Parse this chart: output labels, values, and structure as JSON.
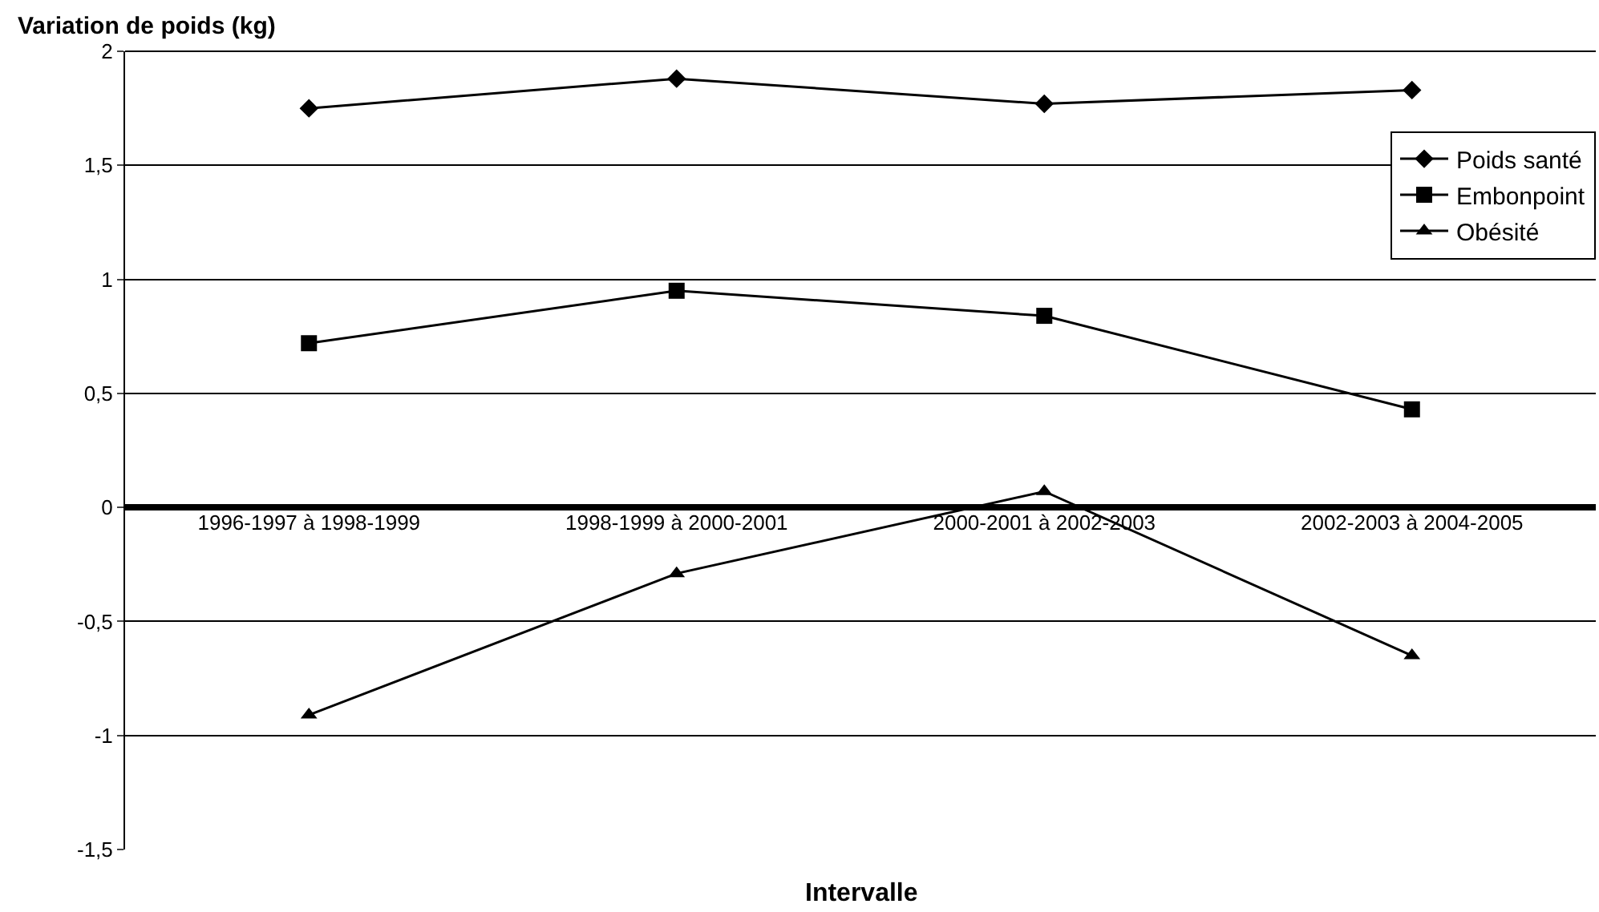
{
  "chart_data": {
    "type": "line",
    "ylabel": "Variation de poids (kg)",
    "xlabel": "Intervalle",
    "categories": [
      "1996-1997 à 1998-1999",
      "1998-1999 à 2000-2001",
      "2000-2001 à 2002-2003",
      "2002-2003 à 2004-2005"
    ],
    "series": [
      {
        "name": "Poids santé",
        "color": "#000000",
        "marker": "diamond",
        "values": [
          1.75,
          1.88,
          1.77,
          1.83
        ]
      },
      {
        "name": "Embonpoint",
        "color": "#000000",
        "marker": "square",
        "values": [
          0.72,
          0.95,
          0.84,
          0.43
        ]
      },
      {
        "name": "Obésité",
        "color": "#000000",
        "marker": "triangle",
        "values": [
          -0.91,
          -0.29,
          0.07,
          -0.65
        ]
      }
    ],
    "ylim": [
      -1.5,
      2
    ],
    "yticks": [
      {
        "value": -1.5,
        "label": "-1,5"
      },
      -1,
      {
        "value": -0.5,
        "label": "-0,5"
      },
      0,
      {
        "value": 0.5,
        "label": "0,5"
      },
      1,
      {
        "value": 1.5,
        "label": "1,5"
      },
      2
    ],
    "grid": "y",
    "legend": "top right",
    "line_style": "solid"
  }
}
